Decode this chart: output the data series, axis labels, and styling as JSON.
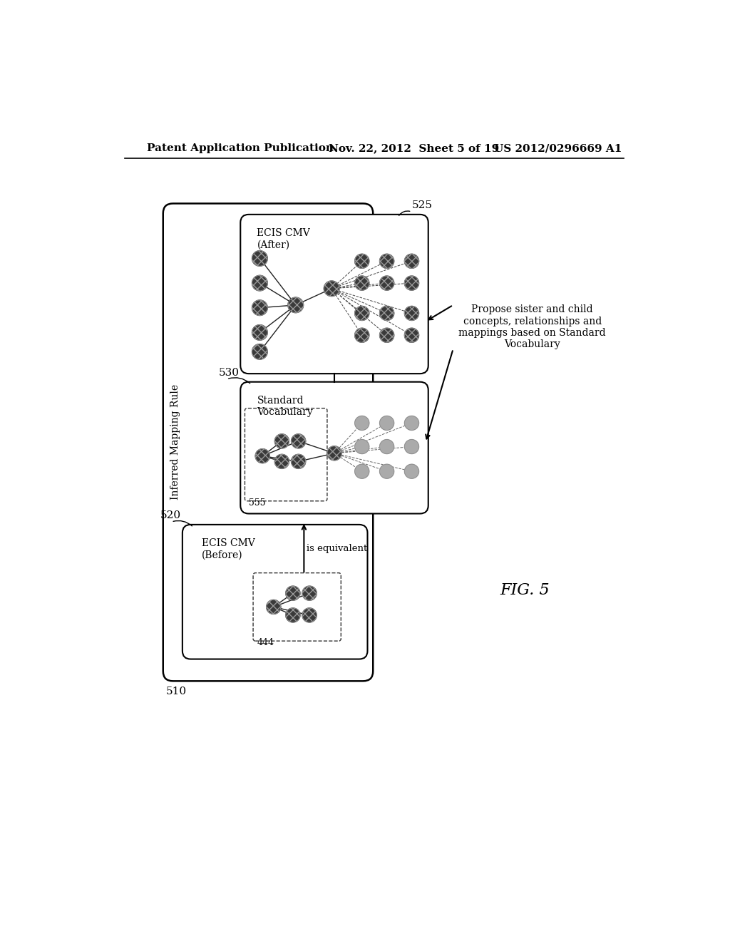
{
  "header_left": "Patent Application Publication",
  "header_mid": "Nov. 22, 2012  Sheet 5 of 19",
  "header_right": "US 2012/0296669 A1",
  "fig_label": "FIG. 5",
  "label_510": "510",
  "label_520": "520",
  "label_525": "525",
  "label_530": "530",
  "label_444": "444",
  "label_555": "555",
  "box_510_title": "Inferred Mapping Rule",
  "box_520_title": "ECIS CMV\n(Before)",
  "box_530_title": "Standard\nVocabulary",
  "box_525_title": "ECIS CMV\n(After)",
  "is_equivalent": "is equivalent",
  "annotation": "Propose sister and child\nconcepts, relationships and\nmappings based on Standard\nVocabulary",
  "bg_color": "#ffffff"
}
